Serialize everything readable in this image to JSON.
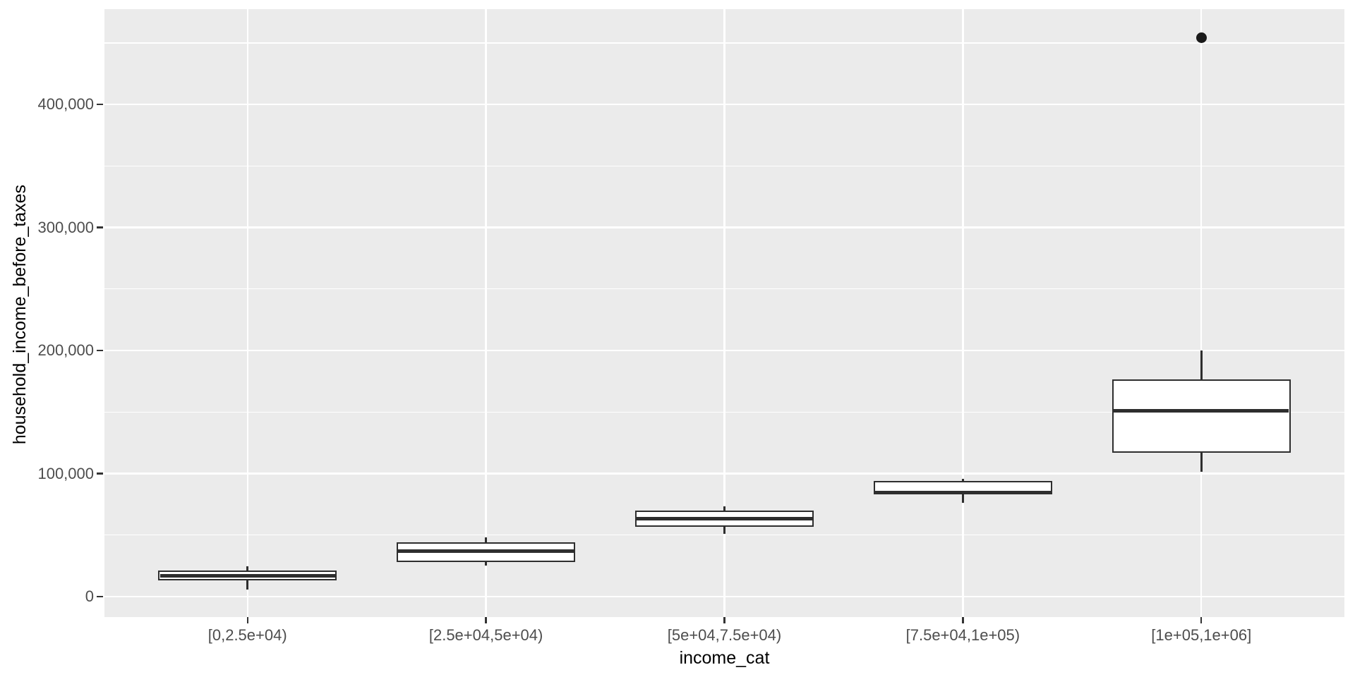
{
  "style": {
    "figure_bg": "#ffffff",
    "panel_bg": "#ebebeb",
    "grid_color": "#ffffff",
    "box_stroke": "#2e2e2e",
    "box_fill": "#ffffff",
    "outlier_color": "#1a1a1a",
    "tick_mark_color": "#333333",
    "tick_label_color": "#4d4d4d",
    "axis_title_color": "#000000"
  },
  "chart_data": {
    "type": "boxplot",
    "title": "",
    "xlabel": "income_cat",
    "ylabel": "household_income_before_taxes",
    "categories": [
      "[0,2.5e+04)",
      "[2.5e+04,5e+04)",
      "[5e+04,7.5e+04)",
      "[7.5e+04,1e+05)",
      "[1e+05,1e+06]"
    ],
    "series": [
      {
        "category": "[0,2.5e+04)",
        "min": 6000,
        "q1": 13200,
        "median": 17000,
        "q3": 21000,
        "max": 24600,
        "outliers": []
      },
      {
        "category": "[2.5e+04,5e+04)",
        "min": 25200,
        "q1": 28100,
        "median": 36700,
        "q3": 44100,
        "max": 48100,
        "outliers": []
      },
      {
        "category": "[5e+04,7.5e+04)",
        "min": 51000,
        "q1": 56700,
        "median": 63600,
        "q3": 70000,
        "max": 73400,
        "outliers": []
      },
      {
        "category": "[7.5e+04,1e+05)",
        "min": 76200,
        "q1": 83100,
        "median": 84800,
        "q3": 94000,
        "max": 95700,
        "outliers": []
      },
      {
        "category": "[1e+05,1e+06]",
        "min": 101700,
        "q1": 117000,
        "median": 151000,
        "q3": 176500,
        "max": 200000,
        "outliers": [
          454000
        ]
      }
    ],
    "y_ticks": [
      {
        "value": 0,
        "label": "0"
      },
      {
        "value": 100000,
        "label": "100,000"
      },
      {
        "value": 200000,
        "label": "200,000"
      },
      {
        "value": 300000,
        "label": "300,000"
      },
      {
        "value": 400000,
        "label": "400,000"
      }
    ],
    "y_minor_ticks": [
      50000,
      150000,
      250000,
      350000,
      450000
    ],
    "ylim": [
      -16600,
      477400
    ],
    "grid": "major-and-minor-white-on-gray",
    "legend": false
  }
}
